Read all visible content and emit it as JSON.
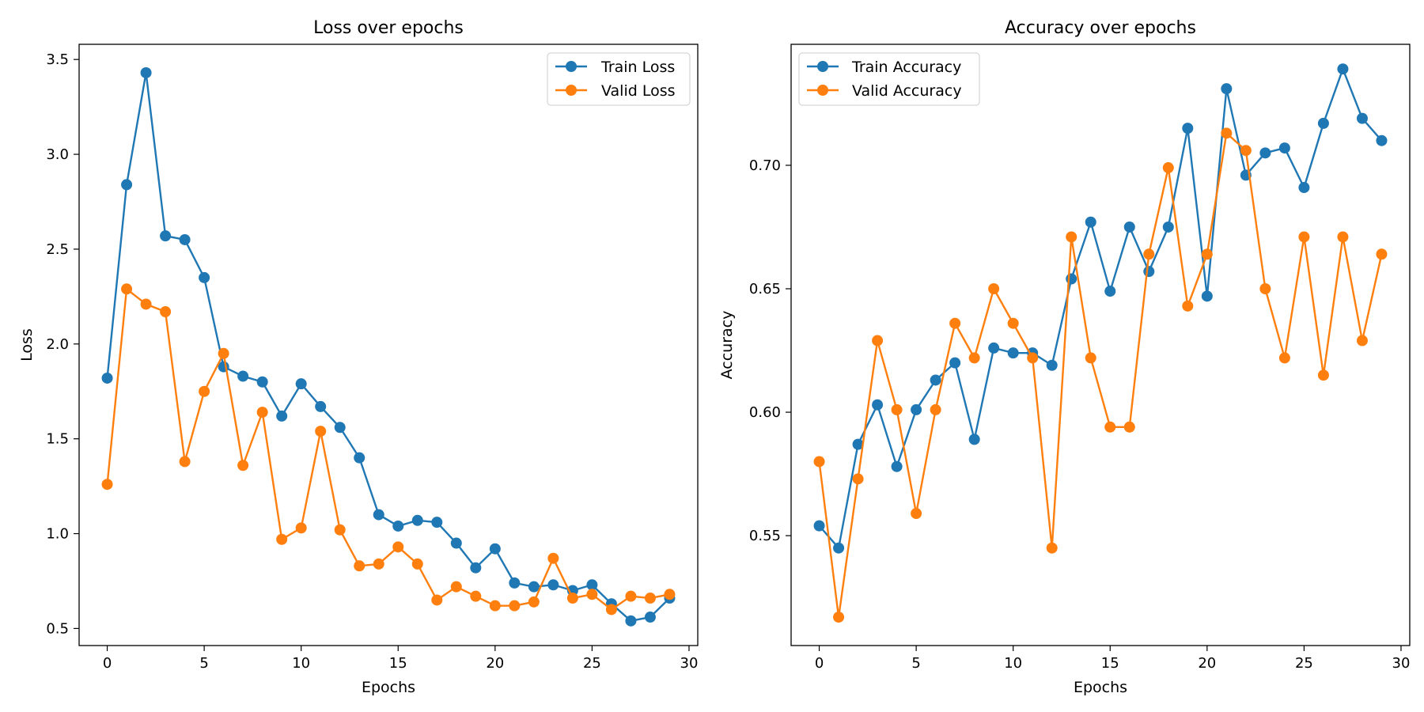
{
  "chart_data": [
    {
      "type": "line",
      "title": "Loss over epochs",
      "xlabel": "Epochs",
      "ylabel": "Loss",
      "xlim": [
        -1.45,
        30.45
      ],
      "ylim": [
        0.41,
        3.58
      ],
      "xticks": [
        0,
        5,
        10,
        15,
        20,
        25,
        30
      ],
      "yticks": [
        0.5,
        1.0,
        1.5,
        2.0,
        2.5,
        3.0,
        3.5
      ],
      "yticklabels": [
        "0.5",
        "1.0",
        "1.5",
        "2.0",
        "2.5",
        "3.0",
        "3.5"
      ],
      "grid": false,
      "legend_position": "top-right",
      "x": [
        0,
        1,
        2,
        3,
        4,
        5,
        6,
        7,
        8,
        9,
        10,
        11,
        12,
        13,
        14,
        15,
        16,
        17,
        18,
        19,
        20,
        21,
        22,
        23,
        24,
        25,
        26,
        27,
        28,
        29
      ],
      "series": [
        {
          "name": "Train Loss",
          "color": "#1f77b4",
          "values": [
            1.82,
            2.84,
            3.43,
            2.57,
            2.55,
            2.35,
            1.88,
            1.83,
            1.8,
            1.62,
            1.79,
            1.67,
            1.56,
            1.4,
            1.1,
            1.04,
            1.07,
            1.06,
            0.95,
            0.82,
            0.92,
            0.74,
            0.72,
            0.73,
            0.7,
            0.73,
            0.63,
            0.54,
            0.56,
            0.66
          ]
        },
        {
          "name": "Valid Loss",
          "color": "#ff7f0e",
          "values": [
            1.26,
            2.29,
            2.21,
            2.17,
            1.38,
            1.75,
            1.95,
            1.36,
            1.64,
            0.97,
            1.03,
            1.54,
            1.02,
            0.83,
            0.84,
            0.93,
            0.84,
            0.65,
            0.72,
            0.67,
            0.62,
            0.62,
            0.64,
            0.87,
            0.66,
            0.68,
            0.6,
            0.67,
            0.66,
            0.68
          ]
        }
      ]
    },
    {
      "type": "line",
      "title": "Accuracy over epochs",
      "xlabel": "Epochs",
      "ylabel": "Accuracy",
      "xlim": [
        -1.45,
        30.45
      ],
      "ylim": [
        0.5055,
        0.749
      ],
      "xticks": [
        0,
        5,
        10,
        15,
        20,
        25,
        30
      ],
      "yticks": [
        0.55,
        0.6,
        0.65,
        0.7
      ],
      "yticklabels": [
        "0.55",
        "0.60",
        "0.65",
        "0.70"
      ],
      "grid": false,
      "legend_position": "top-left",
      "x": [
        0,
        1,
        2,
        3,
        4,
        5,
        6,
        7,
        8,
        9,
        10,
        11,
        12,
        13,
        14,
        15,
        16,
        17,
        18,
        19,
        20,
        21,
        22,
        23,
        24,
        25,
        26,
        27,
        28,
        29
      ],
      "series": [
        {
          "name": "Train Accuracy",
          "color": "#1f77b4",
          "values": [
            0.554,
            0.545,
            0.587,
            0.603,
            0.578,
            0.601,
            0.613,
            0.62,
            0.589,
            0.626,
            0.624,
            0.624,
            0.619,
            0.654,
            0.677,
            0.649,
            0.675,
            0.657,
            0.675,
            0.715,
            0.647,
            0.731,
            0.696,
            0.705,
            0.707,
            0.691,
            0.717,
            0.739,
            0.719,
            0.71
          ]
        },
        {
          "name": "Valid Accuracy",
          "color": "#ff7f0e",
          "values": [
            0.58,
            0.517,
            0.573,
            0.629,
            0.601,
            0.559,
            0.601,
            0.636,
            0.622,
            0.65,
            0.636,
            0.622,
            0.545,
            0.671,
            0.622,
            0.594,
            0.594,
            0.664,
            0.699,
            0.643,
            0.664,
            0.713,
            0.706,
            0.65,
            0.622,
            0.671,
            0.615,
            0.671,
            0.629,
            0.664
          ]
        }
      ]
    }
  ]
}
